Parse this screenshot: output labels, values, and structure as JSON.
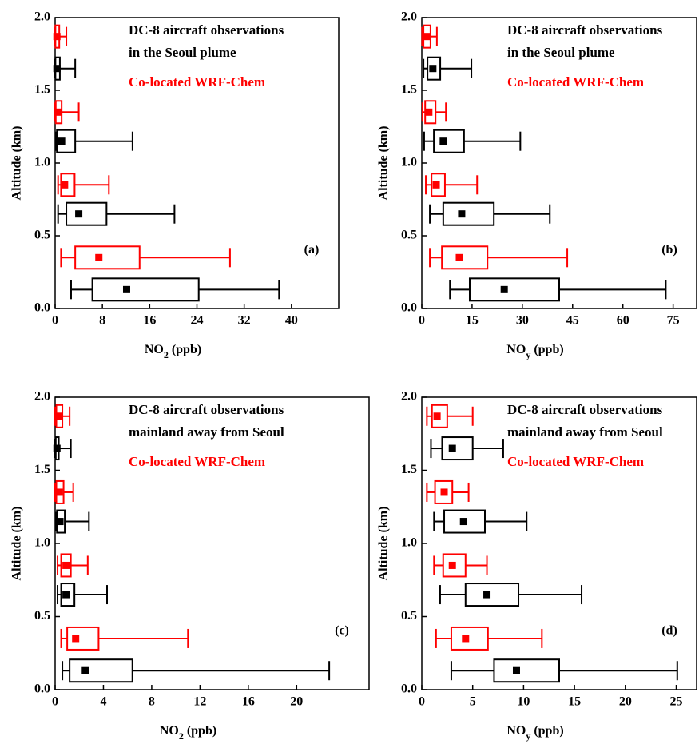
{
  "chart_data": [
    {
      "type": "box",
      "orientation": "horizontal",
      "panel_label": "(a)",
      "xlabel": [
        "NO",
        "2",
        " (ppb)"
      ],
      "ylabel": "Altitude (km)",
      "xlim": [
        0,
        48
      ],
      "xticks": [
        0,
        8,
        16,
        24,
        32,
        40
      ],
      "ylim": [
        0,
        2
      ],
      "yticks": [
        {
          "value": 0,
          "label": "0.0"
        },
        {
          "value": 0.5,
          "label": "0.5"
        },
        {
          "value": 1,
          "label": "1.0"
        },
        {
          "value": 1.5,
          "label": "1.5"
        },
        {
          "value": 2,
          "label": "2.0"
        }
      ],
      "series": [
        {
          "name": "DC-8 aircraft observations\nin the Seoul plume",
          "color": "#000000",
          "positions": [
            0.13,
            0.65,
            1.15,
            1.65
          ],
          "low": [
            2.7,
            0.5,
            0.1,
            0.0
          ],
          "q1": [
            6.3,
            1.9,
            0.3,
            0.05
          ],
          "mean": [
            12.1,
            4.0,
            1.1,
            0.3
          ],
          "q3": [
            24.3,
            8.7,
            3.4,
            0.8
          ],
          "high": [
            37.9,
            20.2,
            13.1,
            3.4
          ]
        },
        {
          "name": "Co-located WRF-Chem",
          "color": "#ff0000",
          "positions": [
            0.35,
            0.85,
            1.35,
            1.87
          ],
          "low": [
            1.0,
            0.5,
            0.0,
            0.0
          ],
          "q1": [
            3.4,
            1.0,
            0.1,
            0.05
          ],
          "mean": [
            7.4,
            1.6,
            0.5,
            0.3
          ],
          "q3": [
            14.3,
            3.3,
            1.1,
            0.7
          ],
          "high": [
            29.6,
            9.1,
            4.0,
            1.9
          ]
        }
      ]
    },
    {
      "type": "box",
      "orientation": "horizontal",
      "panel_label": "(b)",
      "xlabel": [
        "NO",
        "y",
        " (ppb)"
      ],
      "ylabel": "Altitude (km)",
      "xlim": [
        0,
        82
      ],
      "xticks": [
        0,
        15,
        30,
        45,
        60,
        75
      ],
      "ylim": [
        0,
        2
      ],
      "yticks": [
        {
          "value": 0,
          "label": "0.0"
        },
        {
          "value": 0.5,
          "label": "0.5"
        },
        {
          "value": 1,
          "label": "1.0"
        },
        {
          "value": 1.5,
          "label": "1.5"
        },
        {
          "value": 2,
          "label": "2.0"
        }
      ],
      "series": [
        {
          "name": "DC-8 aircraft observations\nin the Seoul plume",
          "color": "#000000",
          "positions": [
            0.13,
            0.65,
            1.15,
            1.65
          ],
          "low": [
            8.4,
            2.4,
            0.7,
            0.5
          ],
          "q1": [
            14.3,
            6.4,
            3.6,
            1.7
          ],
          "mean": [
            24.6,
            11.9,
            6.4,
            3.3
          ],
          "q3": [
            41.0,
            21.5,
            12.6,
            5.5
          ],
          "high": [
            72.8,
            38.2,
            29.4,
            14.8
          ]
        },
        {
          "name": "Co-located WRF-Chem",
          "color": "#ff0000",
          "positions": [
            0.35,
            0.85,
            1.35,
            1.87
          ],
          "low": [
            2.4,
            1.2,
            0.2,
            0.1
          ],
          "q1": [
            6.0,
            2.9,
            1.0,
            0.5
          ],
          "mean": [
            11.2,
            4.3,
            2.1,
            1.4
          ],
          "q3": [
            19.6,
            6.9,
            4.1,
            2.6
          ],
          "high": [
            43.4,
            16.5,
            7.2,
            4.5
          ]
        }
      ]
    },
    {
      "type": "box",
      "orientation": "horizontal",
      "panel_label": "(c)",
      "xlabel": [
        "NO",
        "2",
        " (ppb)"
      ],
      "ylabel": "Altitude (km)",
      "xlim": [
        0,
        26
      ],
      "xticks": [
        0,
        4,
        8,
        12,
        16,
        20
      ],
      "ylim": [
        0,
        2
      ],
      "yticks": [
        {
          "value": 0,
          "label": "0.0"
        },
        {
          "value": 0.5,
          "label": "0.5"
        },
        {
          "value": 1,
          "label": "1.0"
        },
        {
          "value": 1.5,
          "label": "1.5"
        },
        {
          "value": 2,
          "label": "2.0"
        }
      ],
      "series": [
        {
          "name": "DC-8 aircraft observations\nmainland away from Seoul",
          "color": "#000000",
          "positions": [
            0.13,
            0.65,
            1.15,
            1.65
          ],
          "low": [
            0.6,
            0.2,
            0.05,
            0.0
          ],
          "q1": [
            1.2,
            0.5,
            0.15,
            0.05
          ],
          "mean": [
            2.5,
            0.9,
            0.4,
            0.15
          ],
          "q3": [
            6.4,
            1.6,
            0.8,
            0.3
          ],
          "high": [
            22.7,
            4.3,
            2.8,
            1.3
          ]
        },
        {
          "name": "Co-located WRF-Chem",
          "color": "#ff0000",
          "positions": [
            0.35,
            0.85,
            1.35,
            1.87
          ],
          "low": [
            0.5,
            0.2,
            0.0,
            0.0
          ],
          "q1": [
            1.0,
            0.5,
            0.1,
            0.1
          ],
          "mean": [
            1.7,
            0.9,
            0.35,
            0.3
          ],
          "q3": [
            3.6,
            1.3,
            0.7,
            0.6
          ],
          "high": [
            11.0,
            2.7,
            1.5,
            1.2
          ]
        }
      ]
    },
    {
      "type": "box",
      "orientation": "horizontal",
      "panel_label": "(d)",
      "xlabel": [
        "NO",
        "y",
        " (ppb)"
      ],
      "ylabel": "Altitude (km)",
      "xlim": [
        0,
        27
      ],
      "xticks": [
        0,
        5,
        10,
        15,
        20,
        25
      ],
      "ylim": [
        0,
        2
      ],
      "yticks": [
        {
          "value": 0,
          "label": "0.0"
        },
        {
          "value": 0.5,
          "label": "0.5"
        },
        {
          "value": 1,
          "label": "1.0"
        },
        {
          "value": 1.5,
          "label": "1.5"
        },
        {
          "value": 2,
          "label": "2.0"
        }
      ],
      "series": [
        {
          "name": "DC-8 aircraft observations\nmainland away from Seoul",
          "color": "#000000",
          "positions": [
            0.13,
            0.65,
            1.15,
            1.65
          ],
          "low": [
            2.9,
            1.8,
            1.2,
            0.9
          ],
          "q1": [
            7.1,
            4.3,
            2.2,
            2.0
          ],
          "mean": [
            9.3,
            6.4,
            4.1,
            3.0
          ],
          "q3": [
            13.5,
            9.5,
            6.2,
            5.0
          ],
          "high": [
            25.1,
            15.7,
            10.3,
            8.0
          ]
        },
        {
          "name": "Co-located WRF-Chem",
          "color": "#ff0000",
          "positions": [
            0.35,
            0.85,
            1.35,
            1.87
          ],
          "low": [
            1.4,
            1.2,
            0.5,
            0.5
          ],
          "q1": [
            2.9,
            2.1,
            1.3,
            1.0
          ],
          "mean": [
            4.3,
            3.0,
            2.2,
            1.5
          ],
          "q3": [
            6.5,
            4.3,
            3.0,
            2.5
          ],
          "high": [
            11.8,
            6.4,
            4.6,
            5.0
          ]
        }
      ]
    }
  ]
}
